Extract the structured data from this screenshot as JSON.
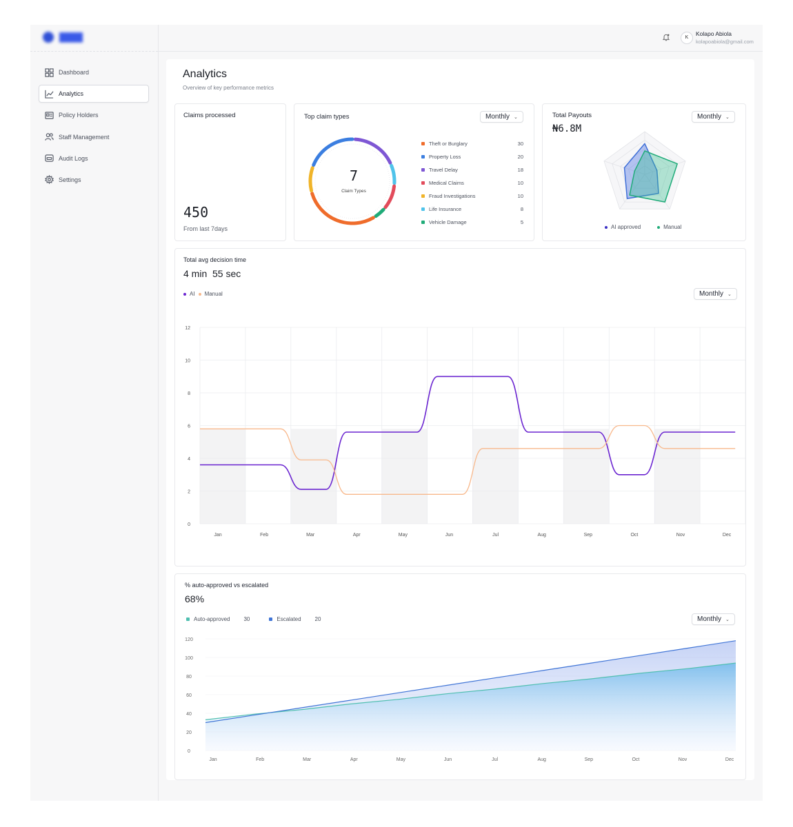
{
  "user": {
    "initial": "K",
    "name": "Kolapo Abiola",
    "email": "kolapoabiola@gmail.com"
  },
  "sidebar": {
    "items": [
      {
        "label": "Dashboard",
        "icon": "grid-icon",
        "active": false
      },
      {
        "label": "Analytics",
        "icon": "chart-line-icon",
        "active": true
      },
      {
        "label": "Policy Holders",
        "icon": "id-card-icon",
        "active": false
      },
      {
        "label": "Staff Management",
        "icon": "users-icon",
        "active": false
      },
      {
        "label": "Audit Logs",
        "icon": "log-icon",
        "active": false
      },
      {
        "label": "Settings",
        "icon": "gear-icon",
        "active": false
      }
    ]
  },
  "page": {
    "title": "Analytics",
    "subtitle": "Overview of key performance metrics"
  },
  "claims_processed": {
    "title": "Claims processed",
    "value": "450",
    "caption": "From last 7days"
  },
  "top_claims": {
    "title": "Top claim types",
    "period": "Monthly",
    "center_value": "7",
    "center_label": "Claim Types",
    "items": [
      {
        "label": "Theft or Burglary",
        "value": 30,
        "color": "#ef6c2b"
      },
      {
        "label": "Property Loss",
        "value": 20,
        "color": "#3b7ee0"
      },
      {
        "label": "Travel Delay",
        "value": 18,
        "color": "#7e57d4"
      },
      {
        "label": "Medical Claims",
        "value": 10,
        "color": "#e24b5b"
      },
      {
        "label": "Fraud Investigations",
        "value": 10,
        "color": "#f0b429"
      },
      {
        "label": "Life Insurance",
        "value": 8,
        "color": "#4fc3ea"
      },
      {
        "label": "Vehicle Damage",
        "value": 5,
        "color": "#1fab78"
      }
    ]
  },
  "total_payouts": {
    "title": "Total Payouts",
    "period": "Monthly",
    "value": "₦6.8M",
    "legend": [
      {
        "label": "AI approved",
        "color": "#3b30c4"
      },
      {
        "label": "Manual",
        "color": "#1fab78"
      }
    ]
  },
  "decision_time": {
    "title": "Total avg decision time",
    "minutes": "4 min",
    "seconds": "55 sec",
    "period": "Monthly",
    "legend": [
      {
        "label": "AI",
        "color": "#6a24d0"
      },
      {
        "label": "Manual",
        "color": "#f8b88b"
      }
    ]
  },
  "auto_approved": {
    "title": "% auto-approved vs escalated",
    "value": "68%",
    "period": "Monthly",
    "legend": [
      {
        "label": "Auto-approved",
        "value": "30",
        "color": "#4fbfb0"
      },
      {
        "label": "Escalated",
        "value": "20",
        "color": "#3f74d6"
      }
    ]
  },
  "chart_data": [
    {
      "type": "pie",
      "title": "Top claim types",
      "categories": [
        "Theft or Burglary",
        "Property Loss",
        "Travel Delay",
        "Medical Claims",
        "Fraud Investigations",
        "Life Insurance",
        "Vehicle Damage"
      ],
      "values": [
        30,
        20,
        18,
        10,
        10,
        8,
        5
      ]
    },
    {
      "type": "radar",
      "title": "Total Payouts",
      "series": [
        {
          "name": "AI approved",
          "values": [
            0.72,
            0.3,
            0.55,
            0.7,
            0.5
          ]
        },
        {
          "name": "Manual",
          "values": [
            0.55,
            0.8,
            0.8,
            0.6,
            0.25
          ]
        }
      ],
      "legend": "bottom"
    },
    {
      "type": "line",
      "title": "Total avg decision time",
      "categories": [
        "Jan",
        "Feb",
        "Mar",
        "Apr",
        "May",
        "Jun",
        "Jul",
        "Aug",
        "Sep",
        "Oct",
        "Nov",
        "Dec"
      ],
      "series": [
        {
          "name": "AI",
          "values": [
            3.6,
            3.6,
            2.1,
            5.6,
            5.6,
            9.0,
            9.0,
            5.6,
            5.6,
            3.0,
            5.6,
            5.6
          ]
        },
        {
          "name": "Manual",
          "values": [
            5.8,
            5.8,
            3.9,
            1.8,
            1.8,
            1.8,
            4.6,
            4.6,
            4.6,
            6.0,
            4.6,
            4.6
          ]
        }
      ],
      "yticks": [
        0,
        2,
        4,
        6,
        8,
        10,
        12
      ],
      "ylim": [
        0,
        12
      ],
      "grid": true,
      "legend": "top-left"
    },
    {
      "type": "area",
      "title": "% auto-approved vs escalated",
      "categories": [
        "Jan",
        "Feb",
        "Mar",
        "Apr",
        "May",
        "Jun",
        "Jul",
        "Aug",
        "Sep",
        "Oct",
        "Nov",
        "Dec"
      ],
      "series": [
        {
          "name": "Auto-approved",
          "values": [
            33,
            39,
            44,
            50,
            55,
            61,
            66,
            72,
            77,
            83,
            88,
            94
          ]
        },
        {
          "name": "Escalated",
          "values": [
            30,
            38,
            46,
            54,
            62,
            70,
            78,
            86,
            94,
            102,
            110,
            118
          ]
        }
      ],
      "yticks": [
        0,
        20,
        40,
        60,
        80,
        100,
        120
      ],
      "ylim": [
        0,
        120
      ],
      "legend": "top-left"
    }
  ]
}
